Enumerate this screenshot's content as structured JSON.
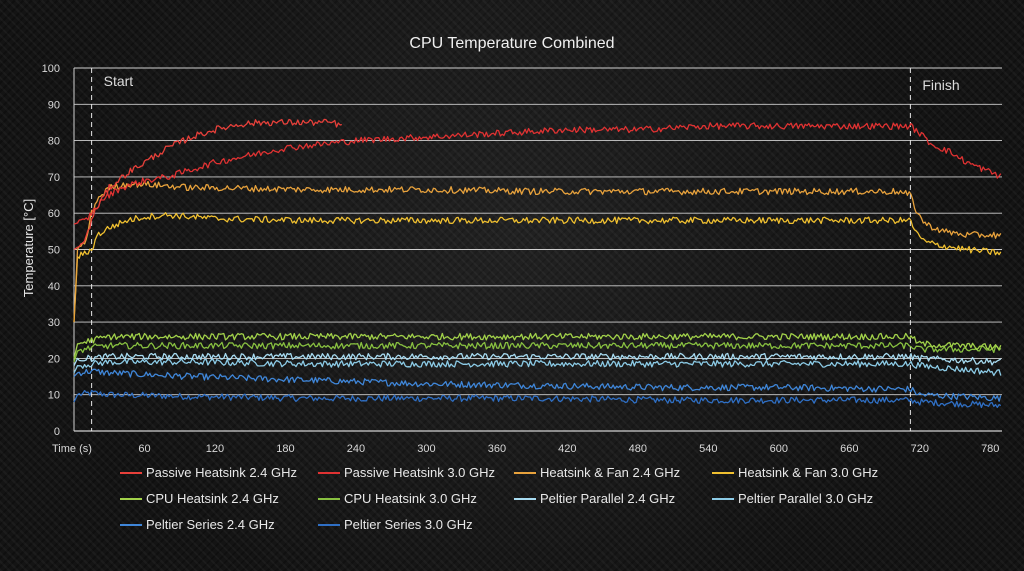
{
  "chart_data": {
    "type": "line",
    "title": "CPU Temperature Combined",
    "xlabel": "Time (s)",
    "ylabel": "Temperature [°C]",
    "xlim": [
      0,
      790
    ],
    "ylim": [
      0,
      100
    ],
    "x_ticks": [
      60,
      120,
      180,
      240,
      300,
      360,
      420,
      480,
      540,
      600,
      660,
      720,
      780
    ],
    "y_ticks": [
      0,
      10,
      20,
      30,
      40,
      50,
      60,
      70,
      80,
      90,
      100
    ],
    "grid": "horizontal",
    "legend_position": "bottom",
    "annotations": [
      {
        "label": "Start",
        "x": 15
      },
      {
        "label": "Finish",
        "x": 712
      }
    ],
    "series": [
      {
        "name": "Passive Heatsink 2.4 GHz",
        "color": "#e8403a",
        "x": [
          0,
          5,
          10,
          15,
          20,
          30,
          45,
          60,
          80,
          100,
          120,
          140,
          160,
          180,
          200,
          220,
          228
        ],
        "y": [
          50,
          51,
          53,
          58,
          62,
          67,
          71,
          74,
          78,
          81,
          83,
          84.5,
          85,
          85,
          85,
          85,
          84
        ]
      },
      {
        "name": "Passive Heatsink 3.0 GHz",
        "color": "#e03232",
        "x": [
          0,
          10,
          15,
          25,
          40,
          60,
          80,
          100,
          120,
          150,
          180,
          210,
          240,
          300,
          360,
          420,
          480,
          540,
          600,
          660,
          712,
          720,
          730,
          745,
          760,
          775,
          790
        ],
        "y": [
          57,
          58,
          60,
          64,
          67,
          69,
          70,
          72,
          74,
          76,
          78,
          79,
          80,
          81,
          82,
          83,
          83,
          84,
          84,
          84,
          84,
          82,
          79,
          77,
          74,
          72,
          70
        ]
      },
      {
        "name": "Heatsink & Fan 2.4 GHz",
        "color": "#e8a23c",
        "x": [
          0,
          3,
          10,
          15,
          20,
          30,
          45,
          60,
          80,
          100,
          120,
          200,
          300,
          400,
          500,
          600,
          700,
          712,
          718,
          725,
          740,
          760,
          790
        ],
        "y": [
          30,
          50,
          52,
          60,
          64,
          67,
          68,
          68,
          67.5,
          67,
          67,
          66.5,
          66.5,
          66,
          66,
          66,
          66,
          65,
          60,
          57,
          55,
          54,
          54
        ]
      },
      {
        "name": "Heatsink & Fan 3.0 GHz",
        "color": "#f0c030",
        "x": [
          0,
          3,
          10,
          15,
          20,
          30,
          45,
          60,
          80,
          100,
          120,
          200,
          300,
          400,
          500,
          600,
          700,
          712,
          718,
          725,
          740,
          760,
          790
        ],
        "y": [
          30,
          48,
          49,
          50,
          54,
          56,
          58,
          59,
          59.5,
          59,
          58.5,
          58,
          58,
          58,
          58,
          58,
          58,
          58,
          54,
          52,
          51,
          50,
          49
        ]
      },
      {
        "name": "CPU Heatsink 2.4 GHz",
        "color": "#a2d24a",
        "x": [
          0,
          3,
          15,
          30,
          100,
          200,
          300,
          400,
          500,
          600,
          712,
          720,
          790
        ],
        "y": [
          20,
          24,
          25,
          26,
          26,
          26,
          26,
          26,
          26,
          26,
          26,
          24,
          23
        ]
      },
      {
        "name": "CPU Heatsink 3.0 GHz",
        "color": "#88c040",
        "x": [
          0,
          3,
          15,
          30,
          100,
          200,
          300,
          400,
          500,
          600,
          712,
          720,
          790
        ],
        "y": [
          19,
          22,
          23,
          23.5,
          23.5,
          23.5,
          23.5,
          23.5,
          23.5,
          23.5,
          23.5,
          22.5,
          22.5
        ]
      },
      {
        "name": "Peltier Parallel 2.4 GHz",
        "color": "#a8dcf2",
        "x": [
          0,
          3,
          15,
          30,
          100,
          200,
          300,
          400,
          500,
          600,
          712,
          720,
          790
        ],
        "y": [
          18,
          20,
          20,
          20.5,
          20.5,
          20.5,
          20.5,
          20.5,
          20.5,
          20.5,
          20.5,
          20,
          19
        ]
      },
      {
        "name": "Peltier Parallel 3.0 GHz",
        "color": "#8ccbe6",
        "x": [
          0,
          3,
          15,
          30,
          100,
          200,
          300,
          400,
          500,
          600,
          712,
          720,
          790
        ],
        "y": [
          16,
          18,
          18.5,
          19,
          19,
          18.5,
          18.5,
          18.5,
          18.5,
          18.5,
          18.5,
          18,
          16
        ]
      },
      {
        "name": "Peltier Series 2.4 GHz",
        "color": "#3f86d8",
        "x": [
          0,
          3,
          15,
          30,
          100,
          200,
          300,
          400,
          500,
          600,
          712,
          720,
          790
        ],
        "y": [
          15,
          16,
          16.5,
          16,
          15,
          14,
          13,
          12.5,
          12,
          12,
          11.5,
          10,
          9
        ]
      },
      {
        "name": "Peltier Series 3.0 GHz",
        "color": "#2f6fc4",
        "x": [
          0,
          3,
          15,
          30,
          100,
          200,
          300,
          400,
          500,
          600,
          712,
          720,
          790
        ],
        "y": [
          8,
          10,
          10.5,
          10,
          9.5,
          9,
          9,
          9,
          8.5,
          8.5,
          8.5,
          8,
          7
        ]
      }
    ]
  }
}
